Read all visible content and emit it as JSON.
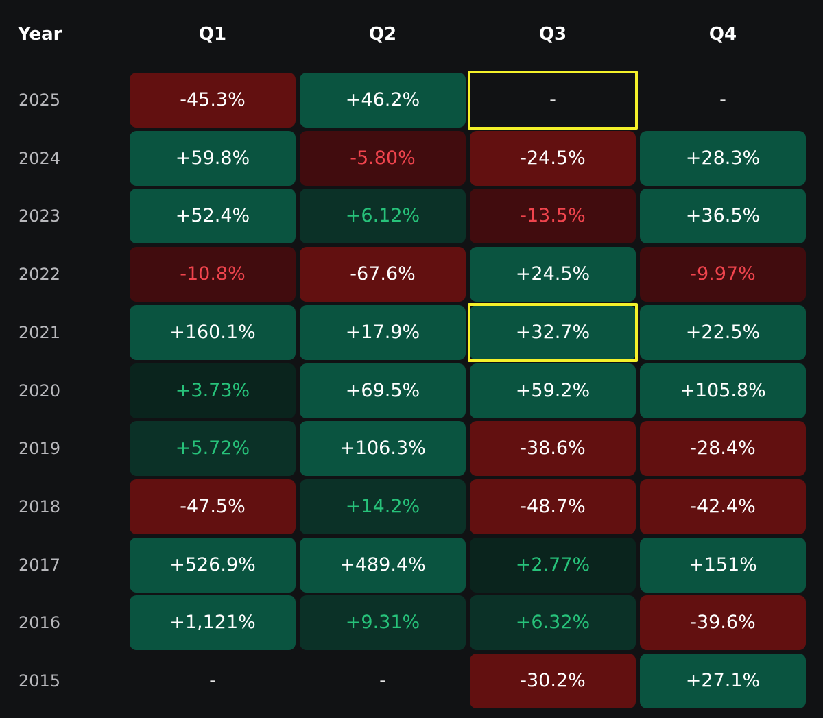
{
  "chart_data": {
    "type": "heatmap",
    "title": "",
    "row_header": "Year",
    "columns": [
      "Q1",
      "Q2",
      "Q3",
      "Q4"
    ],
    "rows": [
      {
        "year": "2025",
        "values": [
          "-45.3%",
          "+46.2%",
          "-",
          "-"
        ]
      },
      {
        "year": "2024",
        "values": [
          "+59.8%",
          "-5.80%",
          "-24.5%",
          "+28.3%"
        ]
      },
      {
        "year": "2023",
        "values": [
          "+52.4%",
          "+6.12%",
          "-13.5%",
          "+36.5%"
        ]
      },
      {
        "year": "2022",
        "values": [
          "-10.8%",
          "-67.6%",
          "+24.5%",
          "-9.97%"
        ]
      },
      {
        "year": "2021",
        "values": [
          "+160.1%",
          "+17.9%",
          "+32.7%",
          "+22.5%"
        ]
      },
      {
        "year": "2020",
        "values": [
          "+3.73%",
          "+69.5%",
          "+59.2%",
          "+105.8%"
        ]
      },
      {
        "year": "2019",
        "values": [
          "+5.72%",
          "+106.3%",
          "-38.6%",
          "-28.4%"
        ]
      },
      {
        "year": "2018",
        "values": [
          "-47.5%",
          "+14.2%",
          "-48.7%",
          "-42.4%"
        ]
      },
      {
        "year": "2017",
        "values": [
          "+526.9%",
          "+489.4%",
          "+2.77%",
          "+151%"
        ]
      },
      {
        "year": "2016",
        "values": [
          "+1,121%",
          "+9.31%",
          "+6.32%",
          "-39.6%"
        ]
      },
      {
        "year": "2015",
        "values": [
          "-",
          "-",
          "-30.2%",
          "+27.1%"
        ]
      }
    ],
    "highlighted_cells": [
      {
        "year": "2025",
        "quarter": "Q3"
      },
      {
        "year": "2021",
        "quarter": "Q3"
      }
    ]
  },
  "colors": {
    "background": "#111214",
    "strong_positive": "#0a5440",
    "weak_positive": "#0b3127",
    "faint_positive": "#0a241d",
    "strong_negative": "#621010",
    "weak_negative": "#410c0e",
    "positive_text_light": "#27c27a",
    "negative_text_light": "#f0444d",
    "strong_text": "#ffffff",
    "empty_text": "#e6e6e6",
    "highlight": "#f4f12a"
  }
}
